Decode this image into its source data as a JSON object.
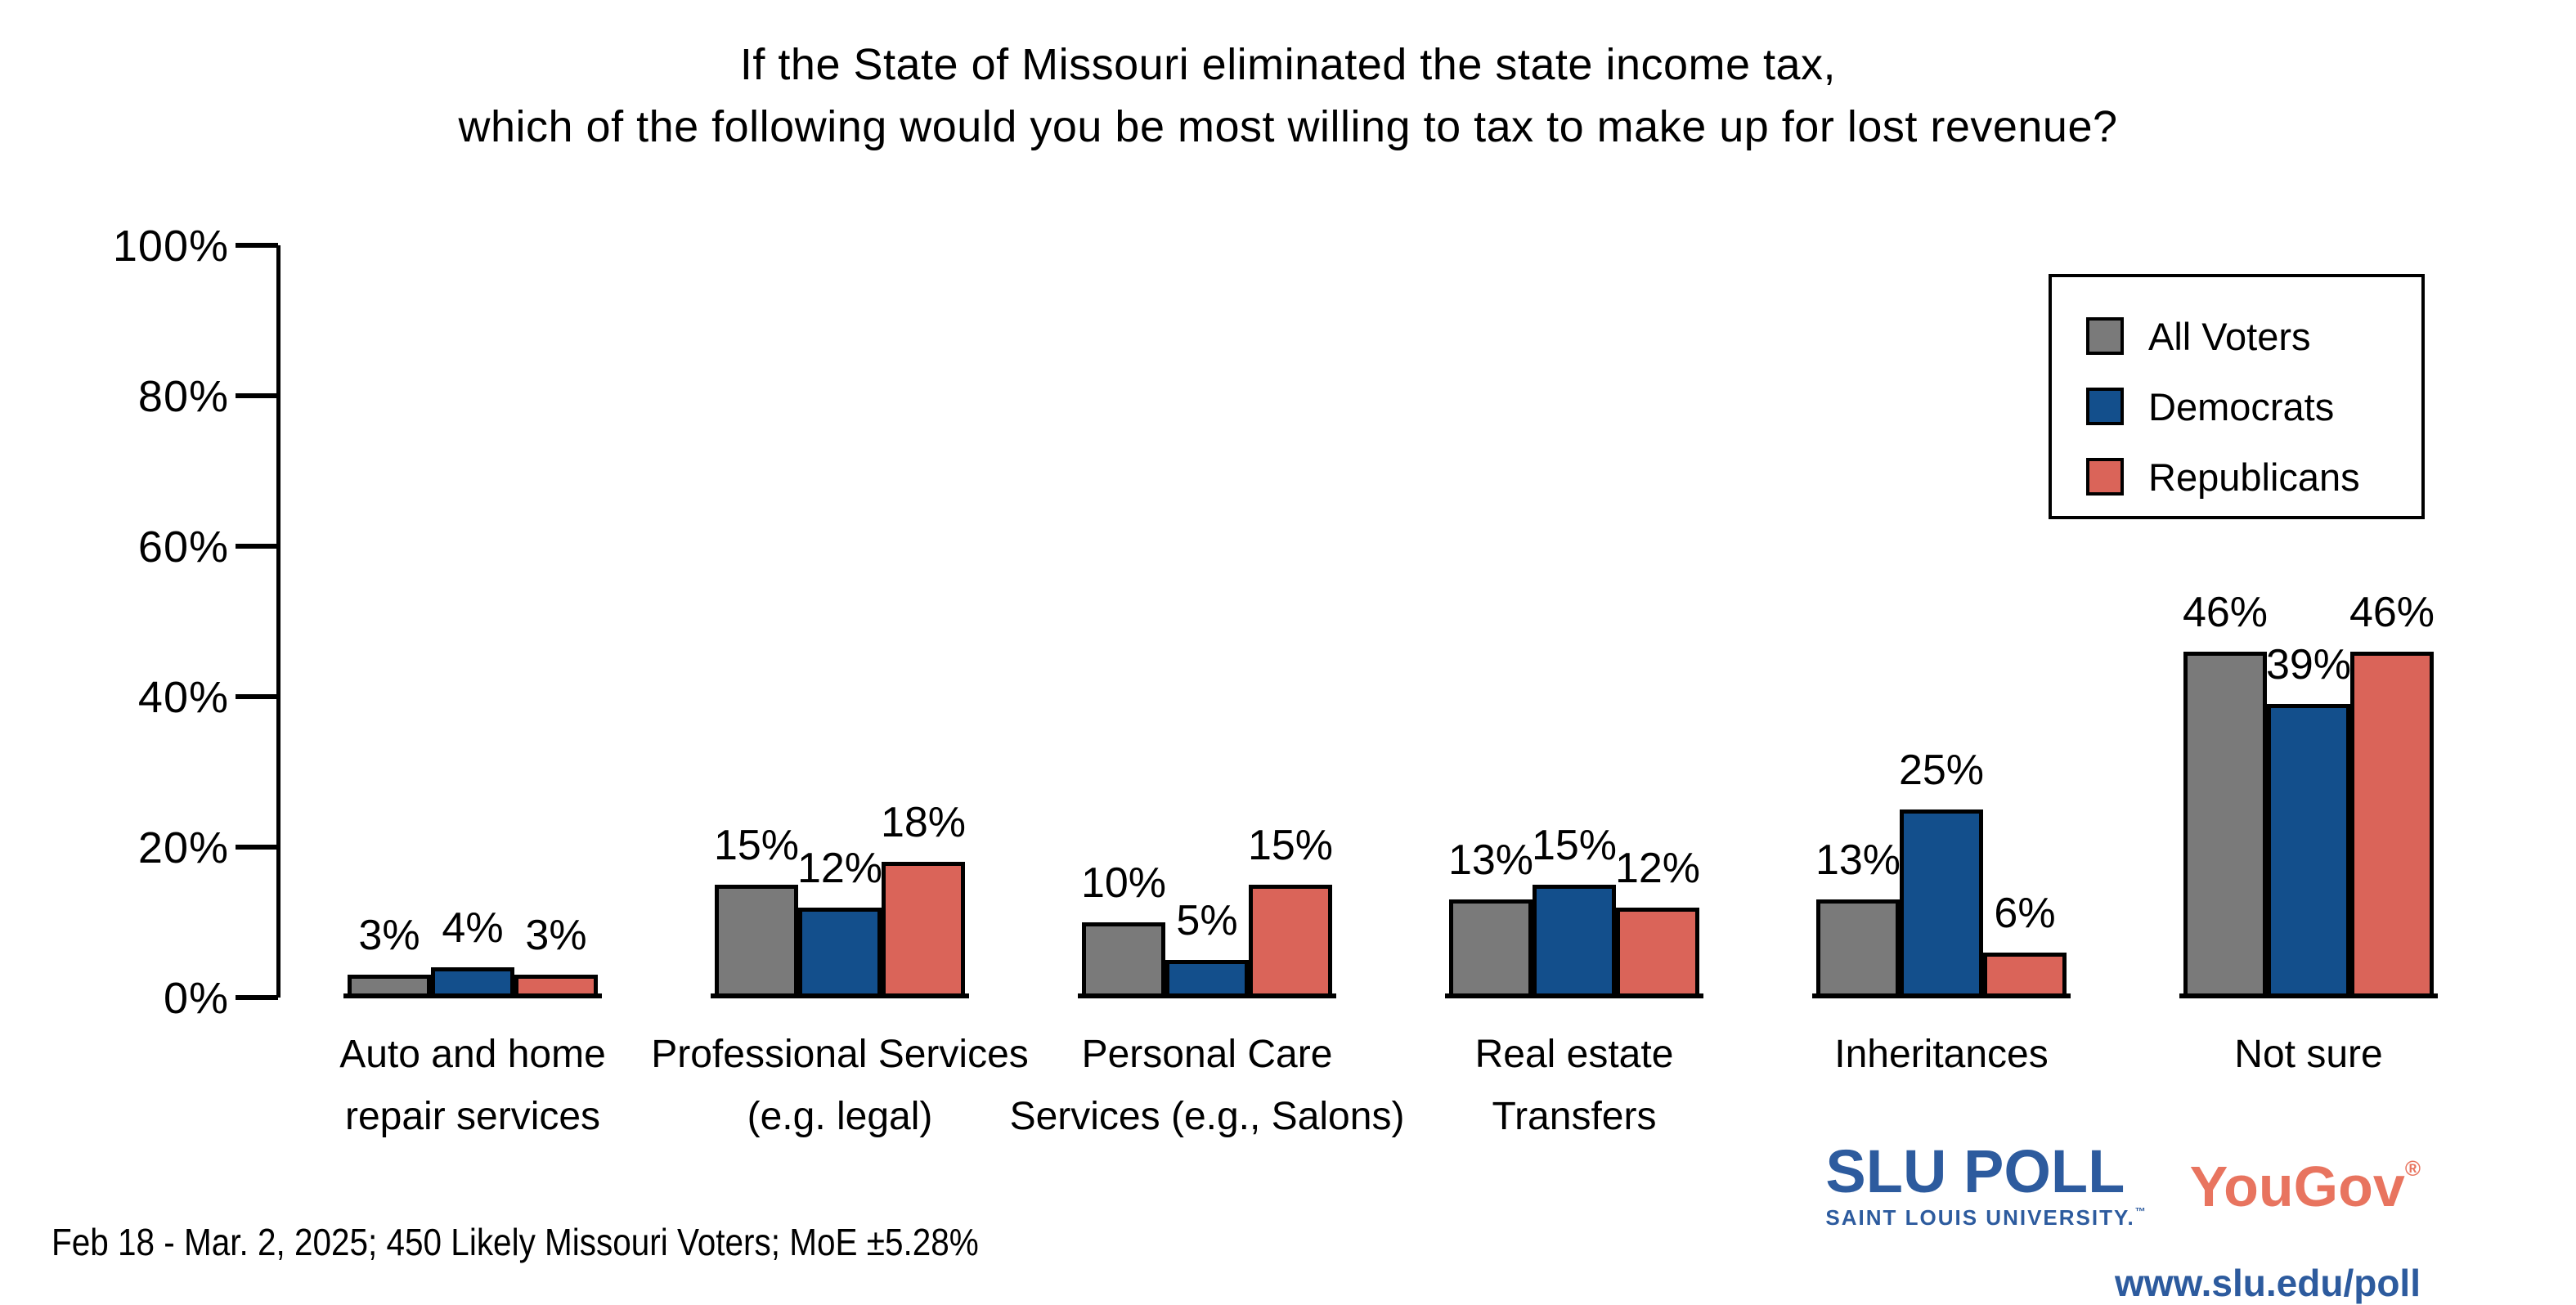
{
  "title": {
    "line1": "If the State of Missouri eliminated the state income tax,",
    "line2": "which of the following would you be most willing to tax to make up for lost revenue?"
  },
  "chart_data": {
    "type": "bar",
    "title": "If the State of Missouri eliminated the state income tax, which of the following would you be most willing to tax to make up for lost revenue?",
    "categories": [
      "Auto and home repair services",
      "Professional Services (e.g. legal)",
      "Personal Care Services (e.g., Salons)",
      "Real estate Transfers",
      "Inheritances",
      "Not sure"
    ],
    "category_label_lines": [
      [
        "Auto and home",
        "repair services"
      ],
      [
        "Professional Services",
        "(e.g. legal)"
      ],
      [
        "Personal Care",
        "Services (e.g., Salons)"
      ],
      [
        "Real estate",
        "Transfers"
      ],
      [
        "Inheritances"
      ],
      [
        "Not sure"
      ]
    ],
    "series": [
      {
        "name": "All Voters",
        "color": "#7a7a7a",
        "values": [
          3,
          15,
          10,
          13,
          13,
          46
        ]
      },
      {
        "name": "Democrats",
        "color": "#134f8c",
        "values": [
          4,
          12,
          5,
          15,
          25,
          39
        ]
      },
      {
        "name": "Republicans",
        "color": "#da6459",
        "values": [
          3,
          18,
          15,
          12,
          6,
          46
        ]
      }
    ],
    "xlabel": "",
    "ylabel": "",
    "ylim": [
      0,
      100
    ],
    "ytick_labels": [
      "0%",
      "20%",
      "40%",
      "60%",
      "80%",
      "100%"
    ],
    "value_suffix": "%",
    "grid": false,
    "legend_position": "top-right"
  },
  "legend": {
    "items": [
      {
        "label": "All Voters",
        "color": "#7a7a7a"
      },
      {
        "label": "Democrats",
        "color": "#134f8c"
      },
      {
        "label": "Republicans",
        "color": "#da6459"
      }
    ]
  },
  "footer": {
    "note": "Feb 18 - Mar. 2, 2025; 450 Likely Missouri Voters; MoE ±5.28%"
  },
  "branding": {
    "slu_title": "SLU POLL",
    "slu_subtitle": "SAINT LOUIS UNIVERSITY.",
    "slu_tm": "™",
    "yougov": "YouGov",
    "registered": "®",
    "url": "www.slu.edu/poll",
    "slu_blue": "#2d5b9e",
    "yougov_color": "#e8745f"
  }
}
